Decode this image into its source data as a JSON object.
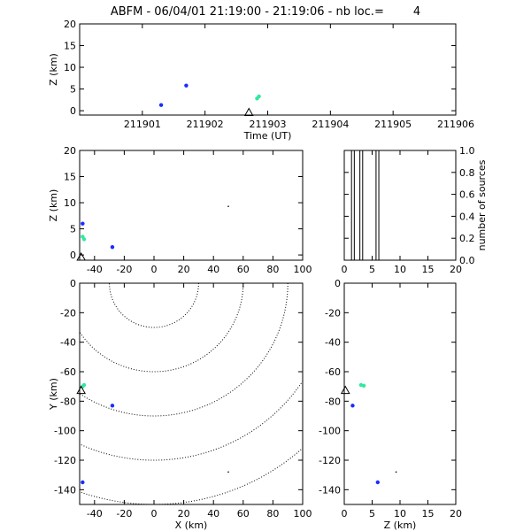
{
  "title": "ABFM - 06/04/01 21:19:00 - 21:19:06 - nb loc.=        4",
  "colors": {
    "blue": "#1a2bff",
    "green": "#30e8a0",
    "black": "#000000"
  },
  "chart_data": [
    {
      "id": "time-height",
      "type": "scatter",
      "xlabel": "Time (UT)",
      "ylabel": "Z (km)",
      "xlim": [
        211900,
        211906
      ],
      "ylim": [
        -1,
        20
      ],
      "xticks": [
        211901,
        211902,
        211903,
        211904,
        211905,
        211906
      ],
      "yticks": [
        0,
        5,
        10,
        15,
        20
      ],
      "points": [
        {
          "x": 211901.3,
          "y": 1.3,
          "color": "blue"
        },
        {
          "x": 211901.7,
          "y": 5.8,
          "color": "blue"
        },
        {
          "x": 211902.83,
          "y": 2.8,
          "color": "green"
        },
        {
          "x": 211902.86,
          "y": 3.3,
          "color": "green"
        }
      ],
      "marker": {
        "x": 211902.7,
        "y": -0.5
      }
    },
    {
      "id": "x-z",
      "type": "scatter",
      "ylabel": "Z (km)",
      "xlim": [
        -50,
        100
      ],
      "ylim": [
        -1,
        20
      ],
      "xticks": [
        -40,
        -20,
        0,
        20,
        40,
        60,
        80,
        100
      ],
      "yticks": [
        0,
        5,
        10,
        15,
        20
      ],
      "points": [
        {
          "x": -48,
          "y": 6.0,
          "color": "blue"
        },
        {
          "x": -48,
          "y": 3.5,
          "color": "green"
        },
        {
          "x": -47,
          "y": 3.0,
          "color": "green"
        },
        {
          "x": -28,
          "y": 1.5,
          "color": "blue"
        },
        {
          "x": 50,
          "y": 9.3,
          "color": "black"
        }
      ],
      "marker": {
        "x": -49,
        "y": -0.5
      }
    },
    {
      "id": "histogram",
      "type": "bar",
      "ylabel": "number of sources",
      "xlim": [
        0,
        20
      ],
      "ylim": [
        0,
        1.0
      ],
      "xticks": [
        0,
        5,
        10,
        15,
        20
      ],
      "yticks": [
        0.0,
        0.2,
        0.4,
        0.6,
        0.8,
        1.0
      ],
      "ytick_labels": [
        "0.0",
        "0.2",
        "0.4",
        "0.6",
        "0.8",
        "1.0"
      ],
      "bars": [
        {
          "x0": 1.3,
          "x1": 1.8,
          "y": 1.0
        },
        {
          "x0": 2.8,
          "x1": 3.3,
          "y": 1.0
        },
        {
          "x0": 5.7,
          "x1": 6.2,
          "y": 1.0
        }
      ]
    },
    {
      "id": "x-y",
      "type": "scatter",
      "xlabel": "X (km)",
      "ylabel": "Y (km)",
      "xlim": [
        -50,
        100
      ],
      "ylim": [
        -150,
        0
      ],
      "xticks": [
        -40,
        -20,
        0,
        20,
        40,
        60,
        80,
        100
      ],
      "yticks": [
        0,
        -20,
        -40,
        -60,
        -80,
        -100,
        -120,
        -140
      ],
      "contour_center": {
        "x": 0,
        "y": 0
      },
      "contour_radii": [
        30,
        60,
        90,
        120,
        150
      ],
      "points": [
        {
          "x": -48,
          "y": -70,
          "color": "green"
        },
        {
          "x": -47,
          "y": -69,
          "color": "green"
        },
        {
          "x": -28,
          "y": -83,
          "color": "blue"
        },
        {
          "x": -48,
          "y": -135,
          "color": "blue"
        },
        {
          "x": 50,
          "y": -128,
          "color": "black"
        }
      ],
      "marker": {
        "x": -49,
        "y": -73
      }
    },
    {
      "id": "z-y",
      "type": "scatter",
      "xlabel": "Z (km)",
      "xlim": [
        0,
        20
      ],
      "ylim": [
        -150,
        0
      ],
      "xticks": [
        0,
        5,
        10,
        15,
        20
      ],
      "yticks": [
        0,
        -20,
        -40,
        -60,
        -80,
        -100,
        -120,
        -140
      ],
      "points": [
        {
          "x": 3.0,
          "y": -69,
          "color": "green"
        },
        {
          "x": 3.5,
          "y": -69.5,
          "color": "green"
        },
        {
          "x": 1.5,
          "y": -83,
          "color": "blue"
        },
        {
          "x": 6.0,
          "y": -135,
          "color": "blue"
        },
        {
          "x": 9.3,
          "y": -128,
          "color": "black"
        }
      ],
      "marker": {
        "x": 0.2,
        "y": -73
      }
    }
  ]
}
